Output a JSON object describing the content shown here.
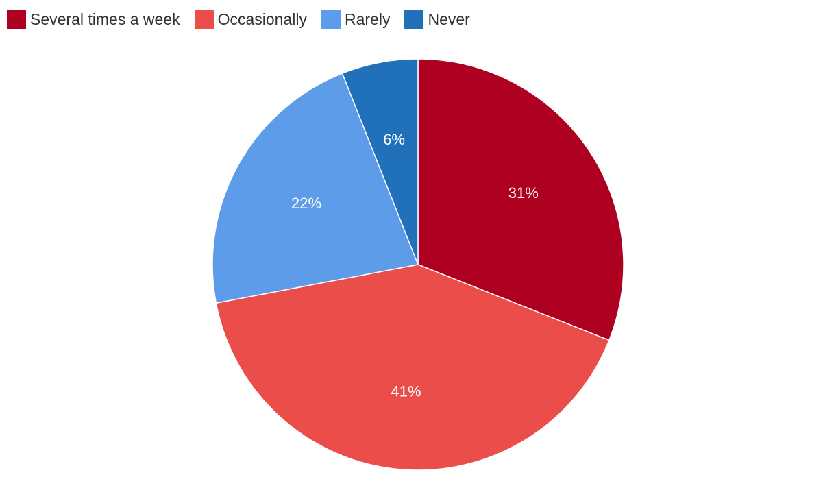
{
  "chart_data": {
    "type": "pie",
    "title": "",
    "legend_position": "top-left",
    "series": [
      {
        "name": "Several times a week",
        "value": 31,
        "label": "31%",
        "color": "#AE0020"
      },
      {
        "name": "Occasionally",
        "value": 41,
        "label": "41%",
        "color": "#EB4E4A"
      },
      {
        "name": "Rarely",
        "value": 22,
        "label": "22%",
        "color": "#5D9CE8"
      },
      {
        "name": "Never",
        "value": 6,
        "label": "6%",
        "color": "#2170BA"
      }
    ]
  }
}
